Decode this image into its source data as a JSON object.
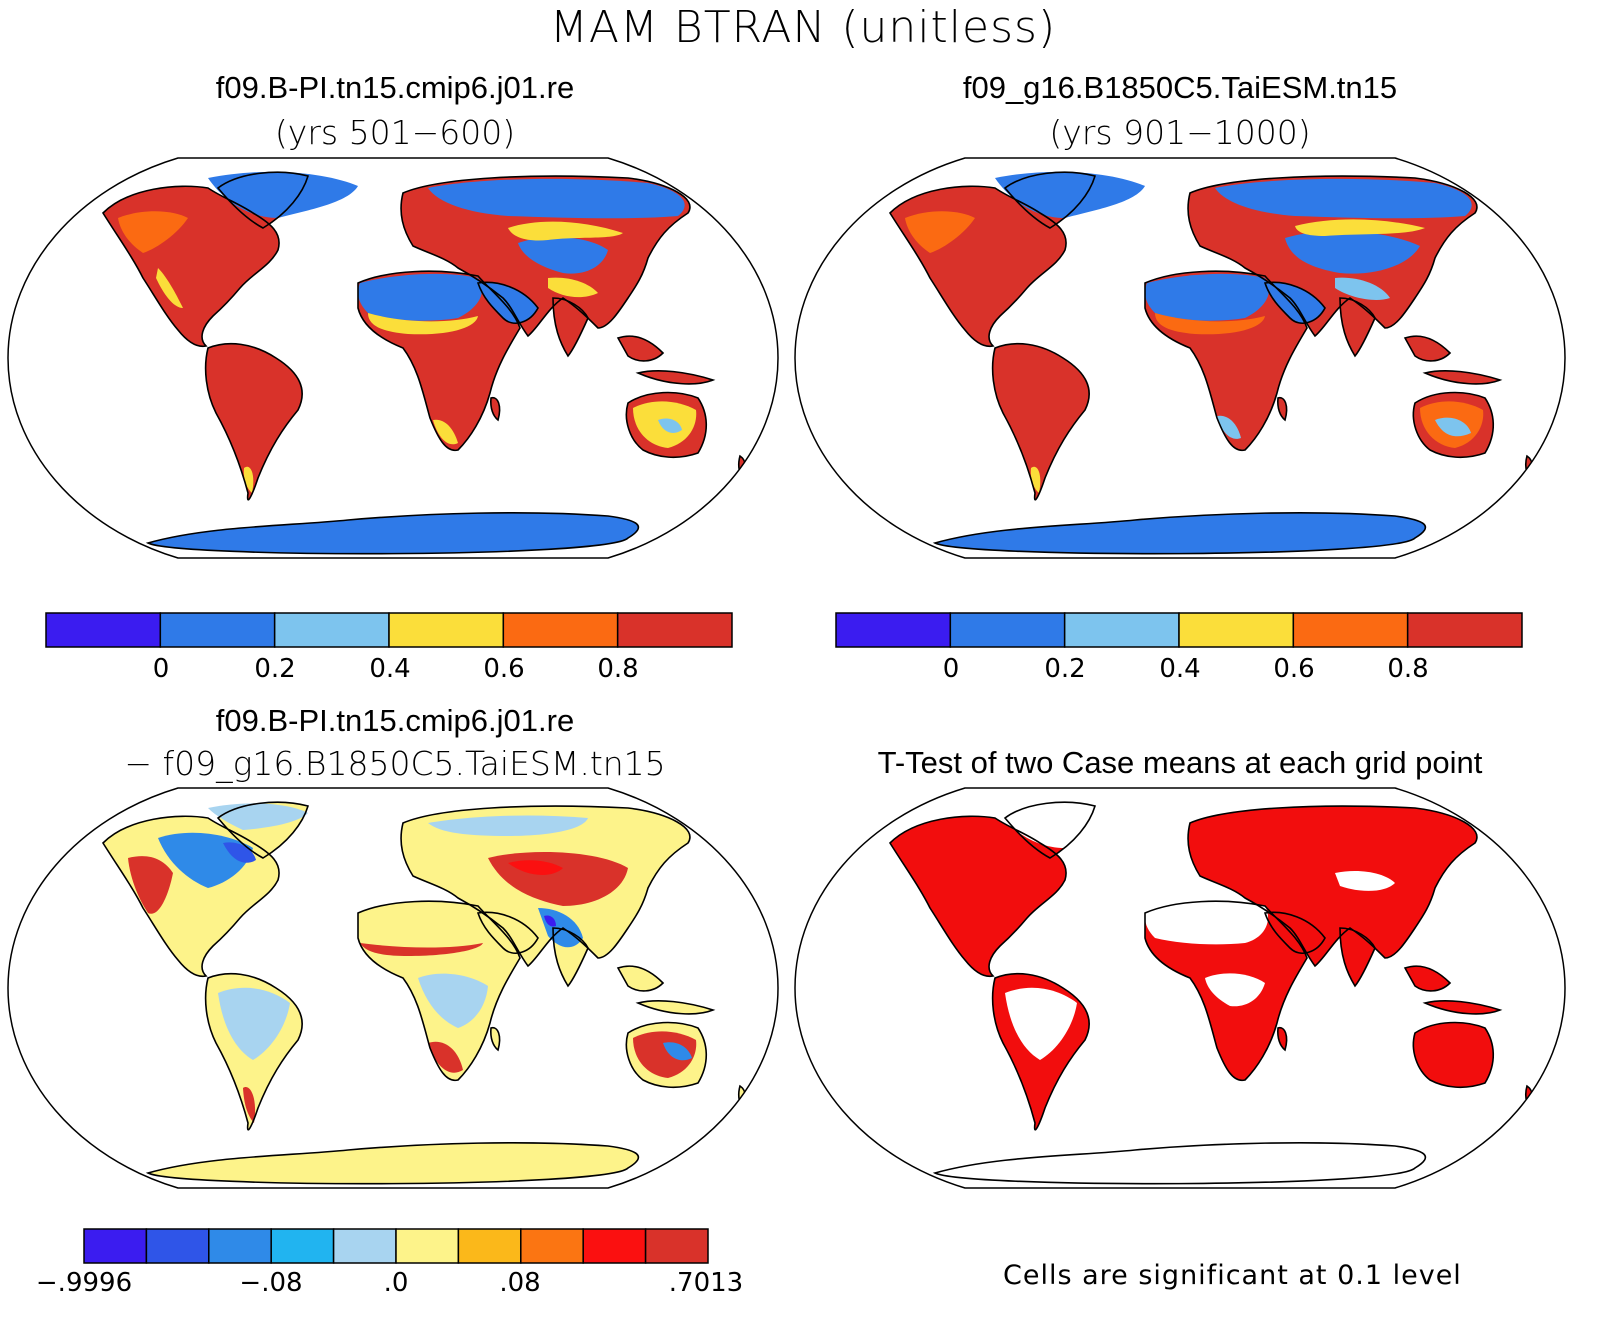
{
  "figure_title": "MAM BTRAN (unitless)",
  "panels": {
    "top_left": {
      "title": "f09.B-PI.tn15.cmip6.j01.re",
      "subtitle": "(yrs 501−600)"
    },
    "top_right": {
      "title": "f09_g16.B1850C5.TaiESM.tn15",
      "subtitle": "(yrs 901−1000)"
    },
    "bottom_left": {
      "title": "f09.B-PI.tn15.cmip6.j01.re",
      "subtitle": "− f09_g16.B1850C5.TaiESM.tn15"
    },
    "bottom_right": {
      "title": "T-Test of two Case means at each grid point",
      "note": "Cells are significant at 0.1 level"
    }
  },
  "colorbar_main": {
    "colors": [
      "#3b1cf0",
      "#2f7ae8",
      "#7dc4ee",
      "#fbde3a",
      "#fb6a12",
      "#d9322a"
    ],
    "labels": [
      "0",
      "0.2",
      "0.4",
      "0.6",
      "0.8"
    ]
  },
  "colorbar_diff": {
    "colors": [
      "#3b1cf0",
      "#2f55e8",
      "#2f8ae8",
      "#21b4f0",
      "#a8d4f0",
      "#fdf38a",
      "#fbb81a",
      "#fb7512",
      "#fb1010",
      "#d9322a"
    ],
    "labels": [
      "−.9996",
      "−.08",
      ".0",
      ".08",
      ".7013"
    ]
  },
  "colors": {
    "ocean": "#ffffff",
    "coast": "#000000",
    "significant": "#f20d0d"
  }
}
